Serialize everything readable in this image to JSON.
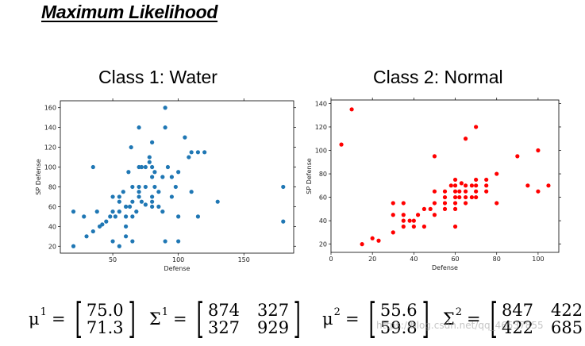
{
  "slide_title": "Maximum Likelihood",
  "watermark": "https://blog.csdn.net/qq_46537855",
  "chart_data": [
    {
      "type": "scatter",
      "title": "Class 1: Water",
      "xlabel": "Defense",
      "ylabel": "SP Defense",
      "xlim": [
        10,
        188
      ],
      "ylim": [
        13,
        167
      ],
      "xticks": [
        50,
        100,
        150
      ],
      "yticks": [
        20,
        40,
        60,
        80,
        100,
        120,
        140,
        160
      ],
      "color": "#1f77b4",
      "x": [
        20,
        20,
        28,
        30,
        35,
        35,
        38,
        40,
        42,
        45,
        48,
        50,
        50,
        50,
        52,
        55,
        55,
        55,
        55,
        58,
        60,
        60,
        60,
        60,
        62,
        63,
        64,
        65,
        65,
        65,
        65,
        68,
        70,
        70,
        70,
        70,
        70,
        72,
        72,
        75,
        75,
        75,
        78,
        78,
        80,
        80,
        80,
        80,
        80,
        80,
        82,
        82,
        85,
        85,
        88,
        88,
        90,
        90,
        90,
        92,
        95,
        95,
        98,
        100,
        100,
        100,
        105,
        108,
        110,
        110,
        115,
        115,
        120,
        130,
        180,
        180
      ],
      "y": [
        55,
        20,
        50,
        30,
        100,
        35,
        55,
        40,
        42,
        45,
        50,
        70,
        55,
        25,
        50,
        20,
        55,
        65,
        70,
        75,
        40,
        30,
        50,
        60,
        95,
        60,
        120,
        25,
        50,
        65,
        80,
        55,
        70,
        140,
        100,
        75,
        80,
        100,
        65,
        80,
        62,
        100,
        110,
        105,
        100,
        60,
        70,
        90,
        65,
        125,
        95,
        80,
        75,
        60,
        90,
        55,
        160,
        140,
        25,
        100,
        70,
        90,
        80,
        50,
        25,
        95,
        130,
        110,
        115,
        75,
        50,
        115,
        115,
        65,
        80,
        45
      ]
    },
    {
      "type": "scatter",
      "title": "Class 2: Normal",
      "xlabel": "Defense",
      "ylabel": "SP Defense",
      "xlim": [
        0,
        110
      ],
      "ylim": [
        13,
        143
      ],
      "xticks": [
        0,
        20,
        40,
        60,
        80,
        100
      ],
      "yticks": [
        20,
        40,
        60,
        80,
        100,
        120,
        140
      ],
      "color": "#ff0000",
      "x": [
        5,
        10,
        15,
        20,
        23,
        30,
        30,
        30,
        35,
        35,
        35,
        35,
        38,
        40,
        40,
        42,
        45,
        45,
        48,
        50,
        50,
        50,
        50,
        55,
        55,
        55,
        55,
        58,
        60,
        60,
        60,
        60,
        60,
        60,
        60,
        62,
        62,
        63,
        65,
        65,
        65,
        65,
        65,
        68,
        68,
        70,
        70,
        70,
        70,
        70,
        75,
        75,
        75,
        80,
        80,
        90,
        95,
        100,
        100,
        105
      ],
      "y": [
        105,
        135,
        20,
        25,
        23,
        30,
        45,
        55,
        35,
        40,
        45,
        55,
        40,
        35,
        40,
        45,
        35,
        50,
        50,
        45,
        65,
        55,
        95,
        50,
        55,
        60,
        65,
        70,
        35,
        50,
        55,
        60,
        65,
        70,
        75,
        60,
        65,
        72,
        55,
        60,
        65,
        70,
        110,
        60,
        70,
        65,
        70,
        75,
        120,
        60,
        65,
        70,
        75,
        55,
        80,
        95,
        70,
        65,
        100,
        70
      ]
    }
  ],
  "stats": {
    "water": {
      "mu_symbol": "μ",
      "mu_sup": "1",
      "mu": [
        "75.0",
        "71.3"
      ],
      "sigma_symbol": "Σ",
      "sigma_sup": "1",
      "sigma": [
        "874",
        "327",
        "327",
        "929"
      ]
    },
    "normal": {
      "mu_symbol": "μ",
      "mu_sup": "2",
      "mu": [
        "55.6",
        "59.8"
      ],
      "sigma_symbol": "Σ",
      "sigma_sup": "2",
      "sigma": [
        "847",
        "422",
        "422",
        "685"
      ]
    }
  },
  "symbols": {
    "equals": "=",
    "bracket_open": "[",
    "bracket_close": "]"
  }
}
